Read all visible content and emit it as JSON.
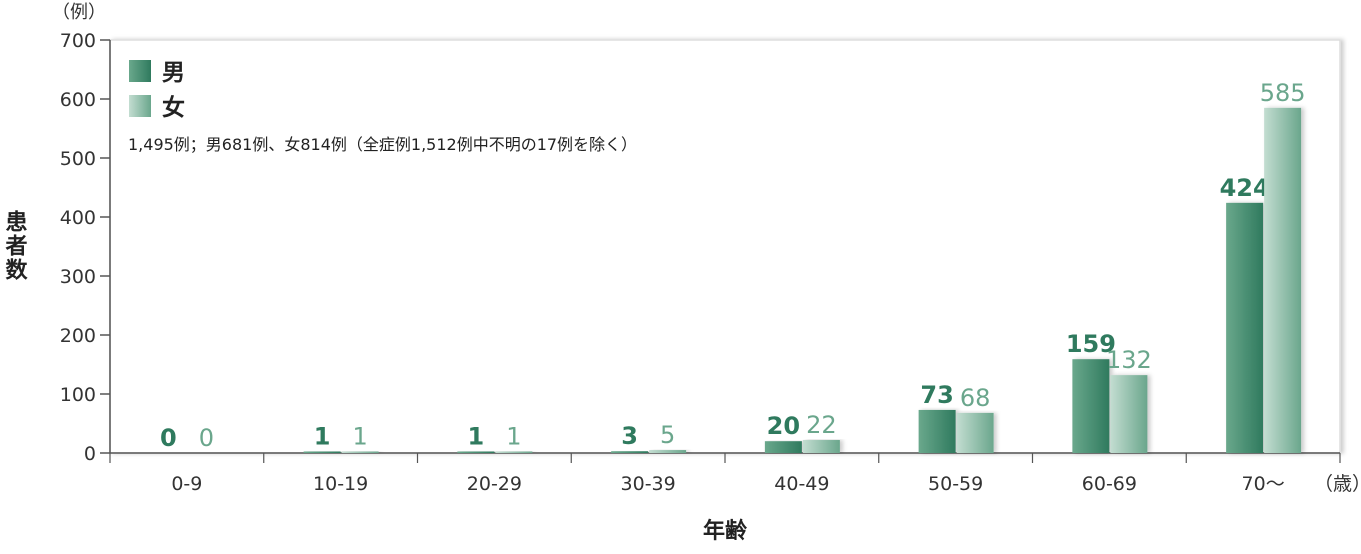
{
  "chart_data": {
    "type": "bar",
    "categories": [
      "0-9",
      "10-19",
      "20-29",
      "30-39",
      "40-49",
      "50-59",
      "60-69",
      "70～"
    ],
    "series": [
      {
        "name": "男",
        "values": [
          0,
          1,
          1,
          3,
          20,
          73,
          159,
          424
        ],
        "color": "#2f7a5e"
      },
      {
        "name": "女",
        "values": [
          0,
          1,
          1,
          5,
          22,
          68,
          132,
          585
        ],
        "color": "#6aa68c"
      }
    ],
    "ylabel": "患者数",
    "xlabel": "年齢",
    "y_unit": "（例）",
    "x_unit": "（歳）",
    "ylim": [
      0,
      700
    ],
    "yticks": [
      0,
      100,
      200,
      300,
      400,
      500,
      600,
      700
    ],
    "grid": false,
    "legend_position": "top-left",
    "annotation": "1,495例；男681例、女814例（全症例1,512例中不明の17例を除く）"
  }
}
